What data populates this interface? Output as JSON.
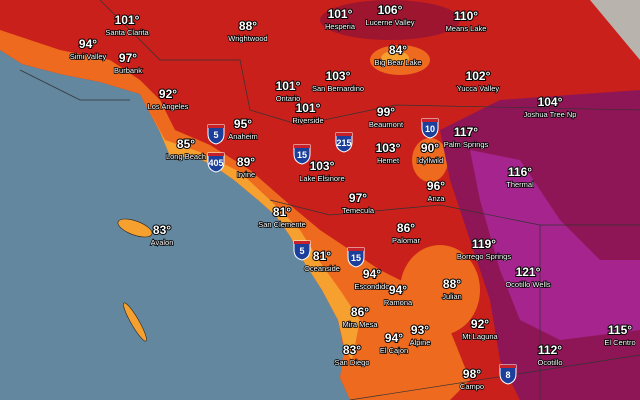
{
  "places": [
    {
      "temp": "101°",
      "name": "Santa Clarita"
    },
    {
      "temp": "94°",
      "name": "Simi Valley"
    },
    {
      "temp": "97°",
      "name": "Burbank"
    },
    {
      "temp": "92°",
      "name": "Los Angeles"
    },
    {
      "temp": "88°",
      "name": "Wrightwood"
    },
    {
      "temp": "101°",
      "name": "Hesperia"
    },
    {
      "temp": "106°",
      "name": "Lucerne Valley"
    },
    {
      "temp": "110°",
      "name": "Means Lake"
    },
    {
      "temp": "84°",
      "name": "Big Bear Lake"
    },
    {
      "temp": "103°",
      "name": "San Bernardino"
    },
    {
      "temp": "101°",
      "name": "Ontario"
    },
    {
      "temp": "102°",
      "name": "Yucca Valley"
    },
    {
      "temp": "104°",
      "name": "Joshua Tree Np"
    },
    {
      "temp": "99°",
      "name": "Beaumont"
    },
    {
      "temp": "101°",
      "name": "Riverside"
    },
    {
      "temp": "95°",
      "name": "Anaheim"
    },
    {
      "temp": "117°",
      "name": "Palm Springs"
    },
    {
      "temp": "85°",
      "name": "Long Beach"
    },
    {
      "temp": "103°",
      "name": "Hemet"
    },
    {
      "temp": "90°",
      "name": "Idyllwild"
    },
    {
      "temp": "89°",
      "name": "Irvine"
    },
    {
      "temp": "103°",
      "name": "Lake Elsinore"
    },
    {
      "temp": "116°",
      "name": "Thermal"
    },
    {
      "temp": "96°",
      "name": "Anza"
    },
    {
      "temp": "97°",
      "name": "Temecula"
    },
    {
      "temp": "81°",
      "name": "San Clemente"
    },
    {
      "temp": "86°",
      "name": "Palomar"
    },
    {
      "temp": "83°",
      "name": "Avalon"
    },
    {
      "temp": "119°",
      "name": "Borrego Springs"
    },
    {
      "temp": "81°",
      "name": "Oceanside"
    },
    {
      "temp": "121°",
      "name": "Ocotillo Wells"
    },
    {
      "temp": "94°",
      "name": "Escondido"
    },
    {
      "temp": "88°",
      "name": "Julian"
    },
    {
      "temp": "94°",
      "name": "Ramona"
    },
    {
      "temp": "86°",
      "name": "Mira Mesa"
    },
    {
      "temp": "92°",
      "name": "Mt Laguna"
    },
    {
      "temp": "93°",
      "name": "Alpine"
    },
    {
      "temp": "94°",
      "name": "El Cajon"
    },
    {
      "temp": "115°",
      "name": "El Centro"
    },
    {
      "temp": "83°",
      "name": "San Diego"
    },
    {
      "temp": "112°",
      "name": "Ocotillo"
    },
    {
      "temp": "98°",
      "name": "Campo"
    }
  ],
  "highways": [
    "5",
    "405",
    "15",
    "215",
    "10",
    "15",
    "5",
    "8"
  ]
}
